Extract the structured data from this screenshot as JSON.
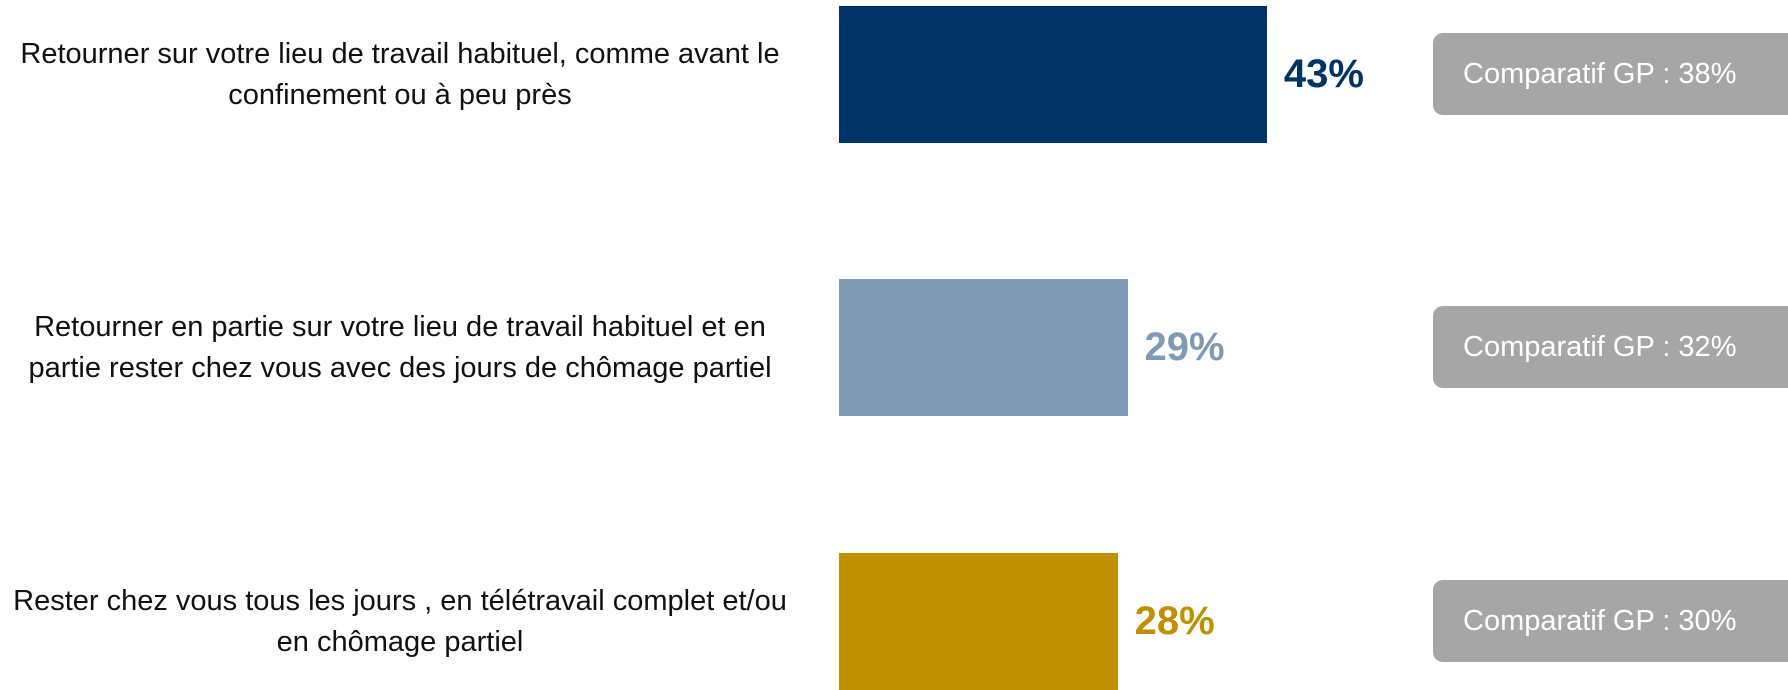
{
  "chart_data": {
    "type": "bar",
    "orientation": "horizontal",
    "categories": [
      "Retourner sur votre lieu de travail habituel, comme avant le confinement ou à peu près",
      "Retourner en partie sur votre lieu de travail habituel et en partie rester chez vous avec des jours de chômage partiel",
      "Rester chez vous tous les jours , en télétravail complet et/ou en chômage partiel"
    ],
    "values": [
      43,
      29,
      28
    ],
    "value_labels": [
      "43%",
      "29%",
      "28%"
    ],
    "colors": [
      "#003466",
      "#7f9ab4",
      "#c09000"
    ],
    "comparisons": [
      "Comparatif GP : 38%",
      "Comparatif GP : 32%",
      "Comparatif GP : 30%"
    ],
    "xlim": [
      0,
      100
    ]
  }
}
